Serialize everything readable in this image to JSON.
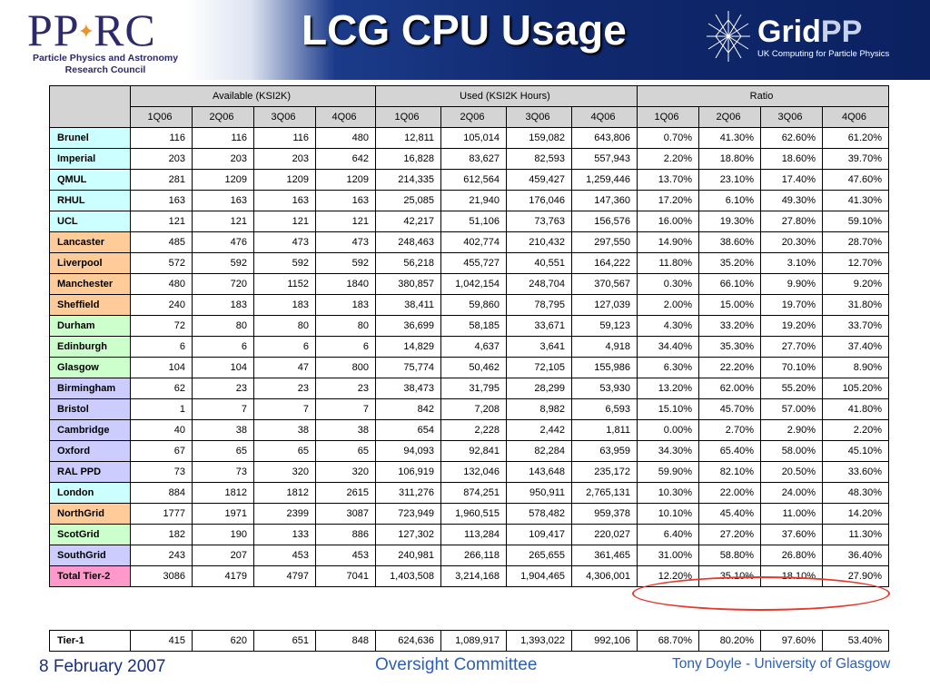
{
  "header": {
    "title": "LCG CPU Usage",
    "left_logo": {
      "name": "PPARC",
      "line1": "Particle Physics and Astronomy",
      "line2": "Research Council"
    },
    "right_logo": {
      "name_main": "Grid",
      "name_suffix": "PP",
      "tagline": "UK Computing for Particle Physics"
    }
  },
  "table": {
    "group_headers": [
      "Available (KSI2K)",
      "Used (KSI2K Hours)",
      "Ratio"
    ],
    "quarters": [
      "1Q06",
      "2Q06",
      "3Q06",
      "4Q06"
    ],
    "rows": [
      {
        "site": "Brunel",
        "group": "london",
        "available": [
          "116",
          "116",
          "116",
          "480"
        ],
        "used": [
          "12,811",
          "105,014",
          "159,082",
          "643,806"
        ],
        "ratio": [
          "0.70%",
          "41.30%",
          "62.60%",
          "61.20%"
        ]
      },
      {
        "site": "Imperial",
        "group": "london",
        "available": [
          "203",
          "203",
          "203",
          "642"
        ],
        "used": [
          "16,828",
          "83,627",
          "82,593",
          "557,943"
        ],
        "ratio": [
          "2.20%",
          "18.80%",
          "18.60%",
          "39.70%"
        ]
      },
      {
        "site": "QMUL",
        "group": "london",
        "available": [
          "281",
          "1209",
          "1209",
          "1209"
        ],
        "used": [
          "214,335",
          "612,564",
          "459,427",
          "1,259,446"
        ],
        "ratio": [
          "13.70%",
          "23.10%",
          "17.40%",
          "47.60%"
        ]
      },
      {
        "site": "RHUL",
        "group": "london",
        "available": [
          "163",
          "163",
          "163",
          "163"
        ],
        "used": [
          "25,085",
          "21,940",
          "176,046",
          "147,360"
        ],
        "ratio": [
          "17.20%",
          "6.10%",
          "49.30%",
          "41.30%"
        ]
      },
      {
        "site": "UCL",
        "group": "london",
        "available": [
          "121",
          "121",
          "121",
          "121"
        ],
        "used": [
          "42,217",
          "51,106",
          "73,763",
          "156,576"
        ],
        "ratio": [
          "16.00%",
          "19.30%",
          "27.80%",
          "59.10%"
        ]
      },
      {
        "site": "Lancaster",
        "group": "north",
        "available": [
          "485",
          "476",
          "473",
          "473"
        ],
        "used": [
          "248,463",
          "402,774",
          "210,432",
          "297,550"
        ],
        "ratio": [
          "14.90%",
          "38.60%",
          "20.30%",
          "28.70%"
        ]
      },
      {
        "site": "Liverpool",
        "group": "north",
        "available": [
          "572",
          "592",
          "592",
          "592"
        ],
        "used": [
          "56,218",
          "455,727",
          "40,551",
          "164,222"
        ],
        "ratio": [
          "11.80%",
          "35.20%",
          "3.10%",
          "12.70%"
        ]
      },
      {
        "site": "Manchester",
        "group": "north",
        "available": [
          "480",
          "720",
          "1152",
          "1840"
        ],
        "used": [
          "380,857",
          "1,042,154",
          "248,704",
          "370,567"
        ],
        "ratio": [
          "0.30%",
          "66.10%",
          "9.90%",
          "9.20%"
        ]
      },
      {
        "site": "Sheffield",
        "group": "north",
        "available": [
          "240",
          "183",
          "183",
          "183"
        ],
        "used": [
          "38,411",
          "59,860",
          "78,795",
          "127,039"
        ],
        "ratio": [
          "2.00%",
          "15.00%",
          "19.70%",
          "31.80%"
        ]
      },
      {
        "site": "Durham",
        "group": "scot",
        "available": [
          "72",
          "80",
          "80",
          "80"
        ],
        "used": [
          "36,699",
          "58,185",
          "33,671",
          "59,123"
        ],
        "ratio": [
          "4.30%",
          "33.20%",
          "19.20%",
          "33.70%"
        ]
      },
      {
        "site": "Edinburgh",
        "group": "scot",
        "available": [
          "6",
          "6",
          "6",
          "6"
        ],
        "used": [
          "14,829",
          "4,637",
          "3,641",
          "4,918"
        ],
        "ratio": [
          "34.40%",
          "35.30%",
          "27.70%",
          "37.40%"
        ]
      },
      {
        "site": "Glasgow",
        "group": "scot",
        "available": [
          "104",
          "104",
          "47",
          "800"
        ],
        "used": [
          "75,774",
          "50,462",
          "72,105",
          "155,986"
        ],
        "ratio": [
          "6.30%",
          "22.20%",
          "70.10%",
          "8.90%"
        ]
      },
      {
        "site": "Birmingham",
        "group": "south",
        "available": [
          "62",
          "23",
          "23",
          "23"
        ],
        "used": [
          "38,473",
          "31,795",
          "28,299",
          "53,930"
        ],
        "ratio": [
          "13.20%",
          "62.00%",
          "55.20%",
          "105.20%"
        ]
      },
      {
        "site": "Bristol",
        "group": "south",
        "available": [
          "1",
          "7",
          "7",
          "7"
        ],
        "used": [
          "842",
          "7,208",
          "8,982",
          "6,593"
        ],
        "ratio": [
          "15.10%",
          "45.70%",
          "57.00%",
          "41.80%"
        ]
      },
      {
        "site": "Cambridge",
        "group": "south",
        "available": [
          "40",
          "38",
          "38",
          "38"
        ],
        "used": [
          "654",
          "2,228",
          "2,442",
          "1,811"
        ],
        "ratio": [
          "0.00%",
          "2.70%",
          "2.90%",
          "2.20%"
        ]
      },
      {
        "site": "Oxford",
        "group": "south",
        "available": [
          "67",
          "65",
          "65",
          "65"
        ],
        "used": [
          "94,093",
          "92,841",
          "82,284",
          "63,959"
        ],
        "ratio": [
          "34.30%",
          "65.40%",
          "58.00%",
          "45.10%"
        ]
      },
      {
        "site": "RAL PPD",
        "group": "south",
        "available": [
          "73",
          "73",
          "320",
          "320"
        ],
        "used": [
          "106,919",
          "132,046",
          "143,648",
          "235,172"
        ],
        "ratio": [
          "59.90%",
          "82.10%",
          "20.50%",
          "33.60%"
        ]
      },
      {
        "site": "London",
        "group": "london",
        "available": [
          "884",
          "1812",
          "1812",
          "2615"
        ],
        "used": [
          "311,276",
          "874,251",
          "950,911",
          "2,765,131"
        ],
        "ratio": [
          "10.30%",
          "22.00%",
          "24.00%",
          "48.30%"
        ]
      },
      {
        "site": "NorthGrid",
        "group": "north",
        "available": [
          "1777",
          "1971",
          "2399",
          "3087"
        ],
        "used": [
          "723,949",
          "1,960,515",
          "578,482",
          "959,378"
        ],
        "ratio": [
          "10.10%",
          "45.40%",
          "11.00%",
          "14.20%"
        ]
      },
      {
        "site": "ScotGrid",
        "group": "scot",
        "available": [
          "182",
          "190",
          "133",
          "886"
        ],
        "used": [
          "127,302",
          "113,284",
          "109,417",
          "220,027"
        ],
        "ratio": [
          "6.40%",
          "27.20%",
          "37.60%",
          "11.30%"
        ]
      },
      {
        "site": "SouthGrid",
        "group": "south",
        "available": [
          "243",
          "207",
          "453",
          "453"
        ],
        "used": [
          "240,981",
          "266,118",
          "265,655",
          "361,465"
        ],
        "ratio": [
          "31.00%",
          "58.80%",
          "26.80%",
          "36.40%"
        ]
      },
      {
        "site": "Total Tier-2",
        "group": "total",
        "available": [
          "3086",
          "4179",
          "4797",
          "7041"
        ],
        "used": [
          "1,403,508",
          "3,214,168",
          "1,904,465",
          "4,306,001"
        ],
        "ratio": [
          "12.20%",
          "35.10%",
          "18.10%",
          "27.90%"
        ]
      }
    ],
    "tier1": {
      "site": "Tier-1",
      "group": "white",
      "available": [
        "415",
        "620",
        "651",
        "848"
      ],
      "used": [
        "624,636",
        "1,089,917",
        "1,393,022",
        "992,106"
      ],
      "ratio": [
        "68.70%",
        "80.20%",
        "97.60%",
        "53.40%"
      ]
    }
  },
  "colors": {
    "london": "#ccffff",
    "north": "#ffcc99",
    "scot": "#ccffcc",
    "south": "#ccccff",
    "total": "#ff99cc",
    "highlight": "#e33a2c"
  },
  "footer": {
    "date": "8 February 2007",
    "event": "Oversight Committee",
    "author": "Tony Doyle - University of Glasgow"
  }
}
